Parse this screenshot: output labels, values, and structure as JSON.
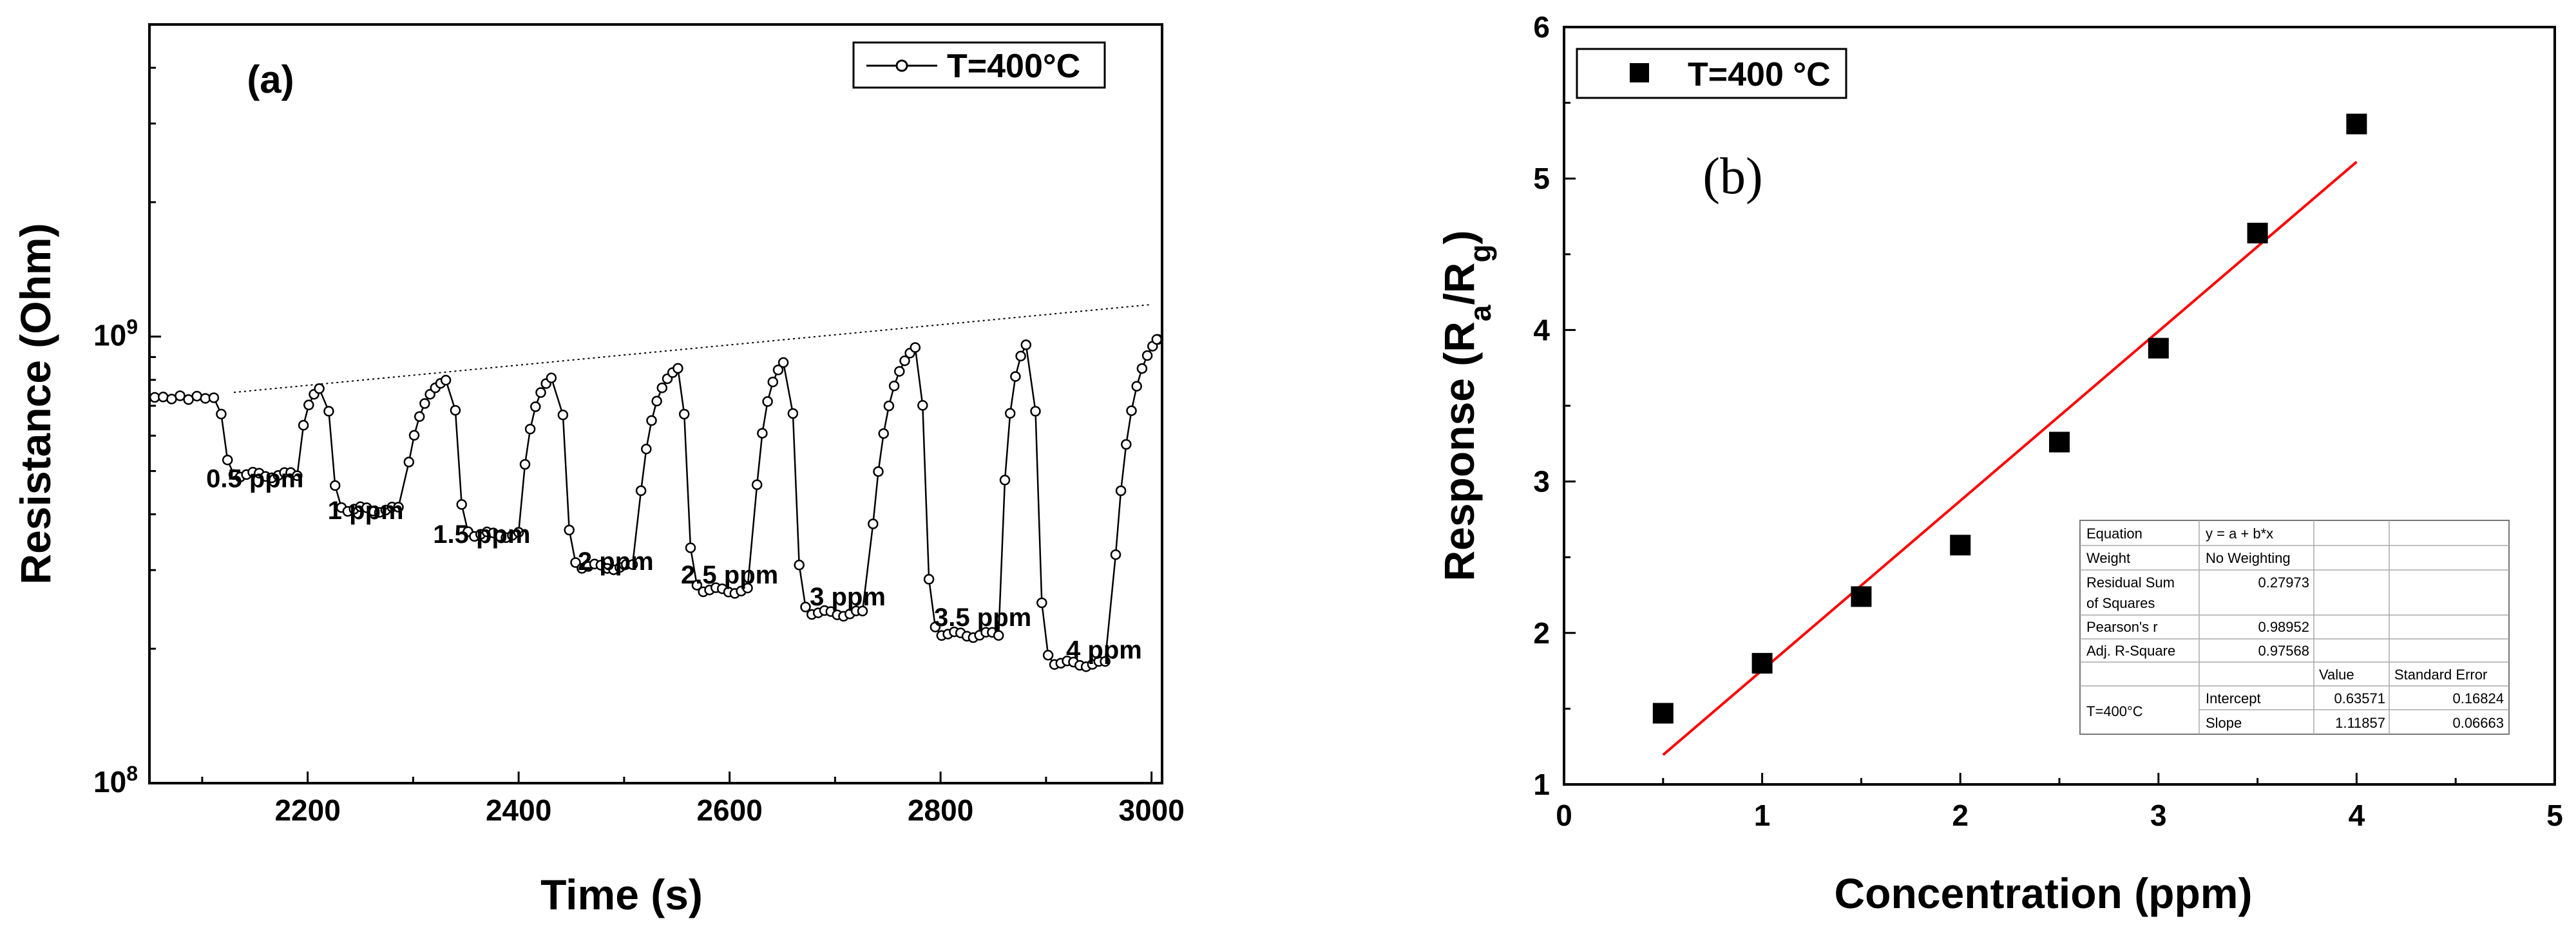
{
  "chart_data": [
    {
      "id": "a",
      "type": "line",
      "panel_label": "(a)",
      "xlabel": "Time (s)",
      "ylabel": "Resistance (Ohm)",
      "xlim": [
        2050,
        3010
      ],
      "ylim": [
        100000000,
        5000000000
      ],
      "yscale": "log",
      "x_ticks": [
        2200,
        2400,
        2600,
        2800,
        3000
      ],
      "x_tick_labels": [
        "2200",
        "2400",
        "2600",
        "2800",
        "3000"
      ],
      "y_ticks": [
        100000000,
        1000000000
      ],
      "y_tick_base_labels": [
        "10",
        "10"
      ],
      "y_tick_exponents": [
        "8",
        "9"
      ],
      "legend": "T=400°C",
      "baseline_trend": {
        "x": [
          2130,
          3000
        ],
        "y": [
          750000000,
          1180000000
        ]
      },
      "concentration_labels": [
        "0.5 ppm",
        "1 ppm",
        "1.5 ppm",
        "2 ppm",
        "2.5 ppm",
        "3 ppm",
        "3.5 ppm",
        "4 ppm"
      ],
      "label_anchor_x": [
        2150,
        2255,
        2365,
        2492,
        2600,
        2712,
        2840,
        2955
      ],
      "label_anchor_y": [
        460000000,
        390000000,
        345000000,
        300000000,
        280000000,
        250000000,
        225000000,
        190000000
      ],
      "cycles": [
        {
          "conc": "0.5 ppm",
          "on": 2118,
          "off": 2190,
          "base": 730000000,
          "min": 490000000,
          "end": 2215
        },
        {
          "conc": "1 ppm",
          "on": 2220,
          "off": 2290,
          "base": 790000000,
          "min": 410000000,
          "end": 2335
        },
        {
          "conc": "1.5 ppm",
          "on": 2340,
          "off": 2400,
          "base": 830000000,
          "min": 360000000,
          "end": 2435
        },
        {
          "conc": "2 ppm",
          "on": 2442,
          "off": 2510,
          "base": 850000000,
          "min": 305000000,
          "end": 2552
        },
        {
          "conc": "2.5 ppm",
          "on": 2557,
          "off": 2620,
          "base": 890000000,
          "min": 270000000,
          "end": 2653
        },
        {
          "conc": "3 ppm",
          "on": 2660,
          "off": 2730,
          "base": 930000000,
          "min": 240000000,
          "end": 2780
        },
        {
          "conc": "3.5 ppm",
          "on": 2783,
          "off": 2855,
          "base": 1020000000,
          "min": 215000000,
          "end": 2882
        },
        {
          "conc": "4 ppm",
          "on": 2890,
          "off": 2960,
          "base": 1030000000,
          "min": 185000000,
          "end": 3010
        }
      ]
    },
    {
      "id": "b",
      "type": "scatter",
      "panel_label": "(b)",
      "xlabel": "Concentration (ppm)",
      "ylabel": "Response (Ra/Rg)",
      "xlim": [
        0,
        5
      ],
      "ylim": [
        1,
        6
      ],
      "x_ticks": [
        0,
        1,
        2,
        3,
        4,
        5
      ],
      "x_tick_labels": [
        "0",
        "1",
        "2",
        "3",
        "4",
        "5"
      ],
      "y_ticks": [
        1,
        2,
        3,
        4,
        5,
        6
      ],
      "y_tick_labels": [
        "1",
        "2",
        "3",
        "4",
        "5",
        "6"
      ],
      "legend": "T=400 °C",
      "x": [
        0.5,
        1.0,
        1.5,
        2.0,
        2.5,
        3.0,
        3.5,
        4.0
      ],
      "y": [
        1.47,
        1.8,
        2.24,
        2.58,
        3.26,
        3.88,
        4.64,
        5.36
      ],
      "fit": {
        "intercept": 0.63571,
        "slope": 1.11857,
        "x_range": [
          0.5,
          4.0
        ],
        "color": "#ff0000",
        "table": {
          "equation_label": "Equation",
          "equation": "y = a + b*x",
          "weight_label": "Weight",
          "weight": "No Weighting",
          "rss_label_1": "Residual Sum",
          "rss_label_2": "of Squares",
          "rss": "0.27973",
          "pearson_label": "Pearson's r",
          "pearson": "0.98952",
          "adjr2_label": "Adj. R-Square",
          "adjr2": "0.97568",
          "value_header": "Value",
          "se_header": "Standard Error",
          "series": "T=400°C",
          "intercept_label": "Intercept",
          "intercept_value": "0.63571",
          "intercept_se": "0.16824",
          "slope_label": "Slope",
          "slope_value": "1.11857",
          "slope_se": "0.06663"
        }
      }
    }
  ]
}
